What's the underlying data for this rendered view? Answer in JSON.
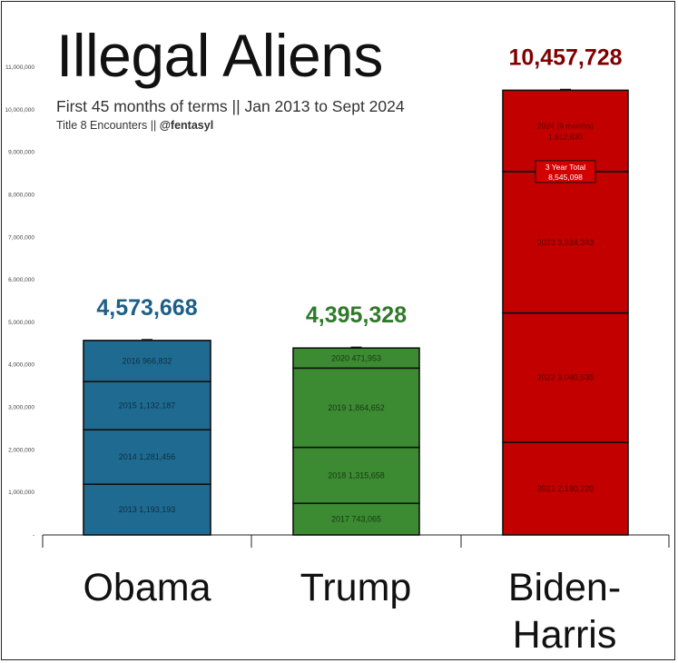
{
  "chart_data": {
    "type": "bar",
    "stacked": true,
    "title": "Illegal Aliens",
    "subtitle": "First 45 months of terms || Jan 2013 to Sept 2024",
    "source_prefix": "Title 8 Encounters || ",
    "source_handle": "@fentasyl",
    "ylim": [
      0,
      11000000
    ],
    "yticks": [
      "-",
      "1,000,000",
      "2,000,000",
      "3,000,000",
      "4,000,000",
      "5,000,000",
      "6,000,000",
      "7,000,000",
      "8,000,000",
      "9,000,000",
      "10,000,000",
      "11,000,000"
    ],
    "categories": [
      "Obama",
      "Trump",
      "Biden-Harris"
    ],
    "totals": [
      "4,573,668",
      "4,395,328",
      "10,457,728"
    ],
    "colors": {
      "Obama": "#1f6a91",
      "Trump": "#3c8a31",
      "Biden-Harris": "#c20000",
      "Obama_total": "#1d5f87",
      "Trump_total": "#2f7a2a",
      "Biden-Harris_total": "#800000"
    },
    "segments": [
      [
        {
          "label": "2013  1,193,193",
          "value": 1193193
        },
        {
          "label": "2014  1,281,456",
          "value": 1281456
        },
        {
          "label": "2015  1,132,187",
          "value": 1132187
        },
        {
          "label": "2016  966,832",
          "value": 966832
        }
      ],
      [
        {
          "label": "2017  743,065",
          "value": 743065
        },
        {
          "label": "2018  1,315,658",
          "value": 1315658
        },
        {
          "label": "2019  1,864,652",
          "value": 1864652
        },
        {
          "label": "2020  471,953",
          "value": 471953
        }
      ],
      [
        {
          "label": "2021  2,180,220",
          "value": 2180220
        },
        {
          "label": "2022  3,040,535",
          "value": 3040535
        },
        {
          "label": "2023  3,324,343",
          "value": 3324343
        },
        {
          "label": "2024 (9 months)  1,912,630",
          "value": 1912630
        }
      ]
    ],
    "annotation": {
      "line1": "3 Year Total",
      "line2": "8,545,098",
      "value": 8545098
    },
    "president_labels": [
      "Obama",
      "Trump",
      "Biden-",
      "Harris"
    ]
  }
}
